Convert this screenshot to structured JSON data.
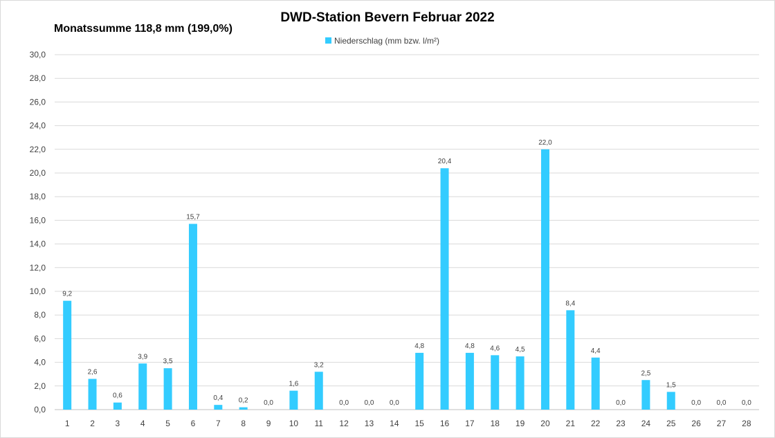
{
  "chart_data": {
    "type": "bar",
    "title": "DWD-Station  Bevern Februar 2022",
    "subtitle": "Monatssumme 118,8 mm (199,0%)",
    "series": [
      {
        "name": "Niederschlag (mm bzw. l/m²)",
        "color": "#33CCFF",
        "values": [
          9.2,
          2.6,
          0.6,
          3.9,
          3.5,
          15.7,
          0.4,
          0.2,
          0.0,
          1.6,
          3.2,
          0.0,
          0.0,
          0.0,
          4.8,
          20.4,
          4.8,
          4.6,
          4.5,
          22.0,
          8.4,
          4.4,
          0.0,
          2.5,
          1.5,
          0.0,
          0.0,
          0.0
        ]
      }
    ],
    "categories": [
      "1",
      "2",
      "3",
      "4",
      "5",
      "6",
      "7",
      "8",
      "9",
      "10",
      "11",
      "12",
      "13",
      "14",
      "15",
      "16",
      "17",
      "18",
      "19",
      "20",
      "21",
      "22",
      "23",
      "24",
      "25",
      "26",
      "27",
      "28"
    ],
    "data_labels": [
      "9,2",
      "2,6",
      "0,6",
      "3,9",
      "3,5",
      "15,7",
      "0,4",
      "0,2",
      "0,0",
      "1,6",
      "3,2",
      "0,0",
      "0,0",
      "0,0",
      "4,8",
      "20,4",
      "4,8",
      "4,6",
      "4,5",
      "22,0",
      "8,4",
      "4,4",
      "0,0",
      "2,5",
      "1,5",
      "0,0",
      "0,0",
      "0,0"
    ],
    "y_ticks": [
      0,
      2,
      4,
      6,
      8,
      10,
      12,
      14,
      16,
      18,
      20,
      22,
      24,
      26,
      28,
      30
    ],
    "y_tick_labels": [
      "0,0",
      "2,0",
      "4,0",
      "6,0",
      "8,0",
      "10,0",
      "12,0",
      "14,0",
      "16,0",
      "18,0",
      "20,0",
      "22,0",
      "24,0",
      "26,0",
      "28,0",
      "30,0"
    ],
    "ylim": [
      0,
      30
    ],
    "xlabel": "",
    "ylabel": "",
    "grid": true,
    "legend_position": "top-center",
    "gridline_color": "#d9d9d9",
    "axis_color": "#bfbfbf"
  }
}
